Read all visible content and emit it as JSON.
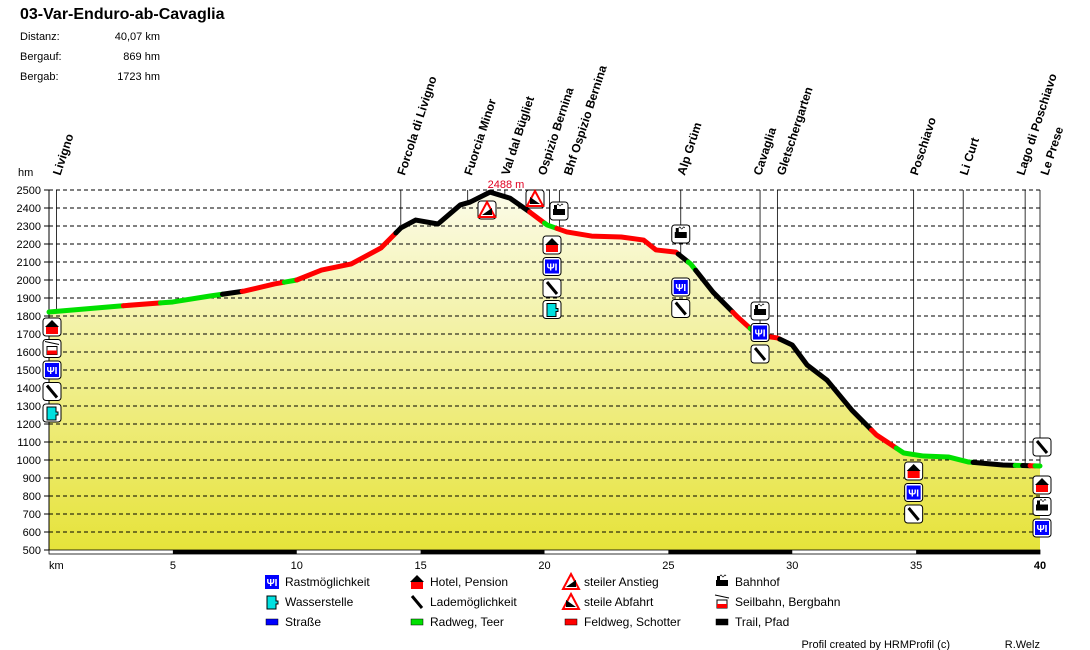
{
  "header": {
    "title": "03-Var-Enduro-ab-Cavaglia",
    "stats": [
      {
        "label": "Distanz:",
        "value": "40,07 km"
      },
      {
        "label": "Bergauf:",
        "value": "869 hm"
      },
      {
        "label": "Bergab:",
        "value": "1723 hm"
      }
    ]
  },
  "chart_data": {
    "type": "area",
    "xlabel": "km",
    "ylabel": "hm",
    "xlim": [
      0,
      40
    ],
    "ylim": [
      500,
      2500
    ],
    "xticks": [
      5,
      10,
      15,
      20,
      25,
      30,
      35,
      40
    ],
    "xtick_labels": [
      "5",
      "10",
      "15",
      "20",
      "25",
      "30",
      "35",
      "40"
    ],
    "yticks": [
      500,
      600,
      700,
      800,
      900,
      1000,
      1100,
      1200,
      1300,
      1400,
      1500,
      1600,
      1700,
      1800,
      1900,
      2000,
      2100,
      2200,
      2300,
      2400,
      2500
    ],
    "ytick_labels": [
      "500",
      "600",
      "700",
      "800",
      "900",
      "1000",
      "1100",
      "1200",
      "1300",
      "1400",
      "1500",
      "1600",
      "1700",
      "1800",
      "1900",
      "2000",
      "2100",
      "2200",
      "2300",
      "2400",
      "2500"
    ],
    "grid": true,
    "max_label": "2488 m",
    "max_km": 17.8,
    "max_elev": 2488,
    "profile": [
      [
        0,
        1822
      ],
      [
        2.8,
        1855
      ],
      [
        5,
        1878
      ],
      [
        6.5,
        1911
      ],
      [
        7.9,
        1939
      ],
      [
        9.1,
        1978
      ],
      [
        10,
        2000
      ],
      [
        11,
        2055
      ],
      [
        12.2,
        2089
      ],
      [
        13.4,
        2178
      ],
      [
        14.2,
        2289
      ],
      [
        14.8,
        2333
      ],
      [
        15.7,
        2311
      ],
      [
        16.6,
        2417
      ],
      [
        17,
        2433
      ],
      [
        17.8,
        2488
      ],
      [
        18.6,
        2455
      ],
      [
        19.4,
        2378
      ],
      [
        20.1,
        2306
      ],
      [
        20.9,
        2267
      ],
      [
        21.9,
        2244
      ],
      [
        23.1,
        2239
      ],
      [
        24,
        2222
      ],
      [
        24.5,
        2167
      ],
      [
        25.3,
        2155
      ],
      [
        25.9,
        2089
      ],
      [
        26.8,
        1933
      ],
      [
        27.8,
        1794
      ],
      [
        28.6,
        1694
      ],
      [
        29.4,
        1678
      ],
      [
        30,
        1639
      ],
      [
        30.6,
        1528
      ],
      [
        31.4,
        1444
      ],
      [
        32.4,
        1278
      ],
      [
        33.4,
        1139
      ],
      [
        34.5,
        1039
      ],
      [
        35.3,
        1022
      ],
      [
        36.3,
        1017
      ],
      [
        37.1,
        989
      ],
      [
        38.5,
        972
      ],
      [
        40,
        967
      ]
    ],
    "surface_segments": [
      [
        0,
        3,
        "radweg"
      ],
      [
        3,
        4.5,
        "feldweg"
      ],
      [
        4.5,
        7,
        "radweg"
      ],
      [
        7,
        7.8,
        "trail"
      ],
      [
        7.8,
        9.5,
        "feldweg"
      ],
      [
        9.5,
        10,
        "radweg"
      ],
      [
        10,
        14,
        "feldweg"
      ],
      [
        14,
        19.4,
        "trail"
      ],
      [
        19.4,
        20,
        "feldweg"
      ],
      [
        20,
        20.5,
        "radweg"
      ],
      [
        20.5,
        25.4,
        "feldweg"
      ],
      [
        25.4,
        25.8,
        "trail"
      ],
      [
        25.8,
        26.1,
        "radweg"
      ],
      [
        26.1,
        27.6,
        "trail"
      ],
      [
        27.6,
        28.3,
        "feldweg"
      ],
      [
        28.3,
        29,
        "radweg"
      ],
      [
        29,
        29.5,
        "feldweg"
      ],
      [
        29.5,
        33.2,
        "trail"
      ],
      [
        33.2,
        34.2,
        "feldweg"
      ],
      [
        34.2,
        37.3,
        "radweg"
      ],
      [
        37.3,
        39,
        "trail"
      ],
      [
        39,
        39.3,
        "radweg"
      ],
      [
        39.3,
        39.6,
        "trail"
      ],
      [
        39.6,
        39.8,
        "feldweg"
      ],
      [
        39.8,
        40,
        "radweg"
      ]
    ],
    "surface_colors": {
      "strasse": "#0000ff",
      "radweg": "#00e000",
      "feldweg": "#ff0000",
      "trail": "#000000"
    },
    "waypoints": [
      {
        "name": "Livigno",
        "km": 0.3
      },
      {
        "name": "Forcola di Livigno",
        "km": 14.2
      },
      {
        "name": "Fuorcia Minor",
        "km": 16.9
      },
      {
        "name": "Val dal Bügliet",
        "km": 18.4
      },
      {
        "name": "Ospizio Bernina",
        "km": 20.2
      },
      {
        "name": "Bhf Ospizio Bernina",
        "km": 20.6
      },
      {
        "name": "Alp Grüm",
        "km": 25.5
      },
      {
        "name": "Cavaglia",
        "km": 28.7
      },
      {
        "name": "Gletschergarten",
        "km": 29.4
      },
      {
        "name": "Poschiavo",
        "km": 34.9
      },
      {
        "name": "Li Curt",
        "km": 36.9
      },
      {
        "name": "Lago di Poschiavo",
        "km": 39.4
      },
      {
        "name": "Le Prese",
        "km": 40
      }
    ],
    "pois": [
      {
        "km": 0,
        "icons": [
          "hotel",
          "seilbahn",
          "rast",
          "lade",
          "wasser"
        ]
      },
      {
        "km": 17.7,
        "icons": [
          "anstieg"
        ]
      },
      {
        "km": 19.7,
        "icons": [
          "abfahrt"
        ]
      },
      {
        "km": 20.3,
        "icons": [
          "hotel",
          "rast",
          "lade",
          "wasser"
        ]
      },
      {
        "km": 20.6,
        "icons": [
          "bahnhof"
        ]
      },
      {
        "km": 25.5,
        "icons": [
          "bahnhof"
        ]
      },
      {
        "km": 25.5,
        "icons": [
          "rast",
          "lade"
        ]
      },
      {
        "km": 28.7,
        "icons": [
          "bahnhof",
          "rast",
          "lade"
        ]
      },
      {
        "km": 34.9,
        "icons": [
          "hotel",
          "rast",
          "lade"
        ]
      },
      {
        "km": 40,
        "icons": [
          "lade"
        ]
      },
      {
        "km": 40,
        "icons": [
          "hotel",
          "bahnhof",
          "rast"
        ]
      }
    ]
  },
  "legend": [
    {
      "icon": "rast",
      "label": "Rastmöglichkeit"
    },
    {
      "icon": "hotel",
      "label": "Hotel, Pension"
    },
    {
      "icon": "anstieg",
      "label": "steiler Anstieg"
    },
    {
      "icon": "bahnhof",
      "label": "Bahnhof"
    },
    {
      "icon": "wasser",
      "label": "Wasserstelle"
    },
    {
      "icon": "lade",
      "label": "Lademöglichkeit"
    },
    {
      "icon": "abfahrt",
      "label": "steile Abfahrt"
    },
    {
      "icon": "seilbahn",
      "label": "Seilbahn, Bergbahn"
    },
    {
      "icon": "strasse",
      "label": "Straße"
    },
    {
      "icon": "radweg",
      "label": "Radweg, Teer"
    },
    {
      "icon": "feldweg",
      "label": "Feldweg, Schotter"
    },
    {
      "icon": "trail",
      "label": "Trail, Pfad"
    }
  ],
  "footer": {
    "credit": "Profil created by HRMProfil (c)",
    "author": "R.Welz"
  }
}
